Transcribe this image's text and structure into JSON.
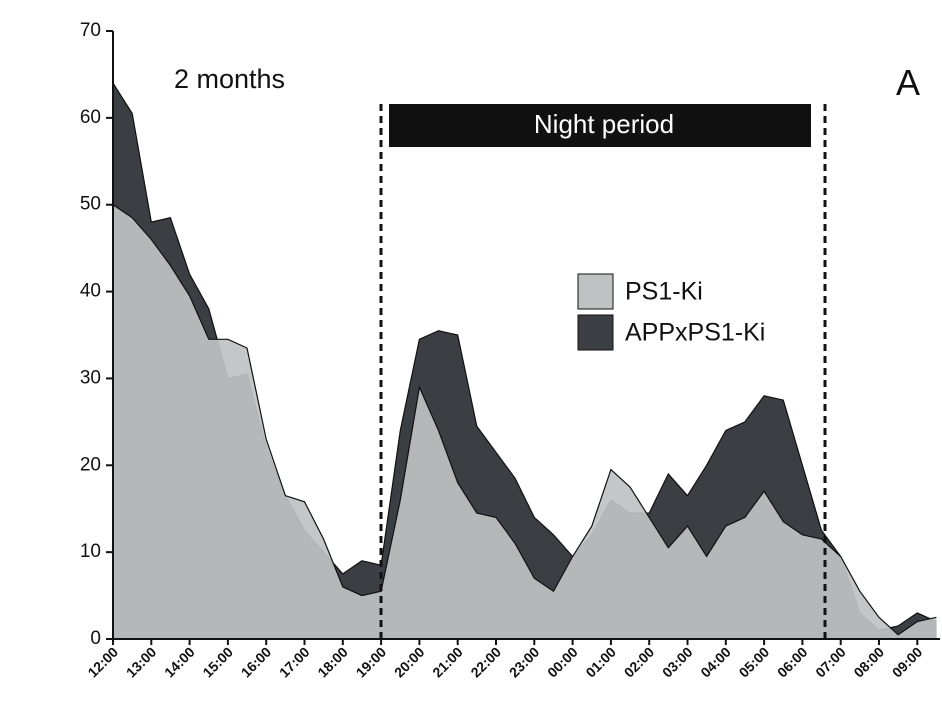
{
  "chart_data": {
    "type": "area",
    "annotation": "2 months",
    "panel_label": "A",
    "night_label": "Night period",
    "categories": [
      "12:00",
      null,
      "13:00",
      null,
      "14:00",
      null,
      "15:00",
      null,
      "16:00",
      null,
      "17:00",
      null,
      "18:00",
      null,
      "19:00",
      null,
      "20:00",
      null,
      "21:00",
      null,
      "22:00",
      null,
      "23:00",
      null,
      "00:00",
      null,
      "01:00",
      null,
      "02:00",
      null,
      "03:00",
      null,
      "04:00",
      null,
      "05:00",
      null,
      "06:00",
      null,
      "07:00",
      null,
      "08:00",
      null,
      "09:00",
      null
    ],
    "series": [
      {
        "name": "PS1-Ki",
        "color": "#c0c1c3",
        "values": [
          50,
          48.5,
          46,
          43,
          39.5,
          34.5,
          34.5,
          33.5,
          23,
          16.5,
          15.8,
          11.5,
          6,
          5,
          5.5,
          16,
          29,
          24,
          18,
          14.5,
          14,
          11,
          7,
          5.5,
          9.5,
          13,
          19.5,
          17.5,
          14,
          10.5,
          13,
          9.5,
          13,
          14,
          17,
          13.5,
          12,
          11.5,
          9.5,
          5.5,
          2.5,
          0.5,
          2,
          2.5
        ]
      },
      {
        "name": "APPxPS1-Ki",
        "color": "#3b3e42",
        "values": [
          64,
          60.5,
          48,
          48.5,
          42,
          38,
          30,
          30.5,
          22,
          16.5,
          12.5,
          10,
          7.5,
          9,
          8.5,
          24,
          34.5,
          35.5,
          35,
          24.5,
          21.5,
          18.5,
          14,
          12,
          9.5,
          12,
          16,
          14.5,
          14.5,
          19,
          16.5,
          20,
          24,
          25,
          28,
          27.5,
          20,
          12.5,
          9.5,
          3,
          1,
          1.5,
          3,
          2
        ]
      }
    ],
    "ylim": [
      0,
      70
    ],
    "yticks": [
      0,
      10,
      20,
      30,
      40,
      50,
      60,
      70
    ]
  }
}
